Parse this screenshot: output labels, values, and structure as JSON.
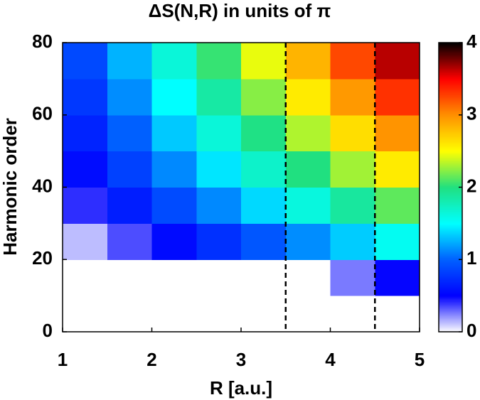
{
  "chart_data": {
    "type": "heatmap",
    "title": "ΔS(N,R) in units of π",
    "xlabel": "R [a.u.]",
    "ylabel": "Harmonic order",
    "xbins": [
      1,
      1.5,
      2,
      2.5,
      3,
      3.5,
      4,
      4.5,
      5
    ],
    "ybins": [
      0,
      10,
      20,
      30,
      40,
      50,
      60,
      70,
      80
    ],
    "values": [
      [
        0,
        0,
        0,
        0,
        0,
        0,
        0,
        0
      ],
      [
        0,
        0,
        0,
        0,
        0,
        0,
        0.26,
        0.49
      ],
      [
        0.13,
        0.35,
        0.55,
        0.75,
        0.95,
        1.14,
        1.34,
        1.55
      ],
      [
        0.41,
        0.65,
        0.89,
        1.13,
        1.38,
        1.63,
        1.88,
        2.14
      ],
      [
        0.56,
        0.84,
        1.13,
        1.42,
        1.71,
        2.0,
        2.29,
        2.59
      ],
      [
        0.68,
        1.0,
        1.33,
        1.65,
        1.98,
        2.32,
        2.65,
        2.98
      ],
      [
        0.79,
        1.14,
        1.5,
        1.86,
        2.23,
        2.59,
        2.96,
        3.33
      ],
      [
        0.88,
        1.26,
        1.65,
        2.05,
        2.45,
        2.84,
        3.25,
        3.64
      ]
    ],
    "xlim": [
      1,
      5
    ],
    "xticks": [
      1,
      2,
      3,
      4,
      5
    ],
    "ylim": [
      0,
      80
    ],
    "yticks": [
      0,
      20,
      40,
      60,
      80
    ],
    "clim": [
      0,
      4
    ],
    "cticks": [
      0,
      1,
      2,
      3,
      4
    ],
    "colormap": [
      "#ffffff",
      "#0000ff",
      "#0060ff",
      "#00ffff",
      "#20e080",
      "#ffff00",
      "#ff9000",
      "#ff0000",
      "#000000"
    ],
    "vlines": [
      3.5,
      4.5
    ]
  }
}
